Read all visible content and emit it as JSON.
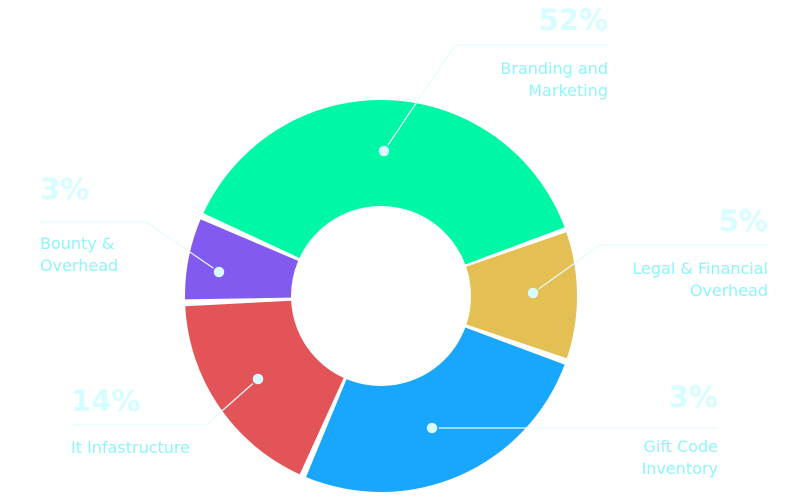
{
  "chart_data": {
    "type": "pie",
    "donut": true,
    "title": "",
    "slices": [
      {
        "key": "branding",
        "label_lines": [
          "Branding and",
          "Marketing"
        ],
        "value": 52,
        "value_label": "52%",
        "color": "#00f7a6"
      },
      {
        "key": "legal",
        "label_lines": [
          "Legal & Financial",
          "Overhead"
        ],
        "value": 5,
        "value_label": "5%",
        "color": "#e3bf54"
      },
      {
        "key": "giftcode",
        "label_lines": [
          "Gift Code",
          "Inventory"
        ],
        "value": 3,
        "value_label": "3%",
        "color": "#19a6fd"
      },
      {
        "key": "infra",
        "label_lines": [
          "It Infastructure"
        ],
        "value": 14,
        "value_label": "14%",
        "color": "#e35458"
      },
      {
        "key": "bounty",
        "label_lines": [
          "Bounty &",
          "Overhead"
        ],
        "value": 3,
        "value_label": "3%",
        "color": "#825af0"
      }
    ],
    "legend": "none (callout labels)"
  }
}
